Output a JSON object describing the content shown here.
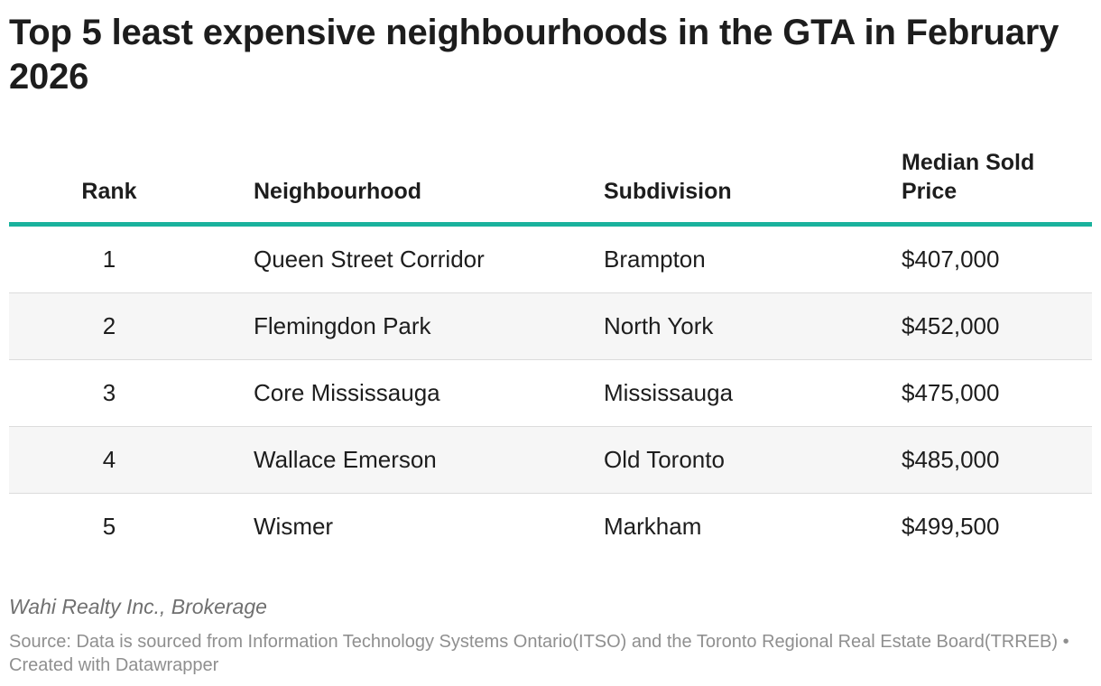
{
  "title": "Top 5 least expensive neighbourhoods in the GTA in February 2026",
  "chart_data": {
    "type": "table",
    "title": "Top 5 least expensive neighbourhoods in the GTA in February 2026",
    "columns": [
      "Rank",
      "Neighbourhood",
      "Subdivision",
      "Median Sold Price"
    ],
    "rows": [
      {
        "rank": "1",
        "neighbourhood": "Queen Street Corridor",
        "subdivision": "Brampton",
        "price": "$407,000"
      },
      {
        "rank": "2",
        "neighbourhood": "Flemingdon Park",
        "subdivision": "North York",
        "price": "$452,000"
      },
      {
        "rank": "3",
        "neighbourhood": "Core Mississauga",
        "subdivision": "Mississauga",
        "price": "$475,000"
      },
      {
        "rank": "4",
        "neighbourhood": "Wallace Emerson",
        "subdivision": "Old Toronto",
        "price": "$485,000"
      },
      {
        "rank": "5",
        "neighbourhood": "Wismer",
        "subdivision": "Markham",
        "price": "$499,500"
      }
    ]
  },
  "byline": "Wahi Realty Inc., Brokerage",
  "source": "Source: Data is sourced from Information Technology Systems Ontario(ITSO) and the Toronto Regional Real Estate Board(TRREB) • Created with Datawrapper",
  "colors": {
    "header_rule": "#1ab29d",
    "row_shade": "#f6f6f6",
    "row_border": "#dcdcdc",
    "text": "#1d1d1d",
    "muted": "#8f8f8f"
  }
}
